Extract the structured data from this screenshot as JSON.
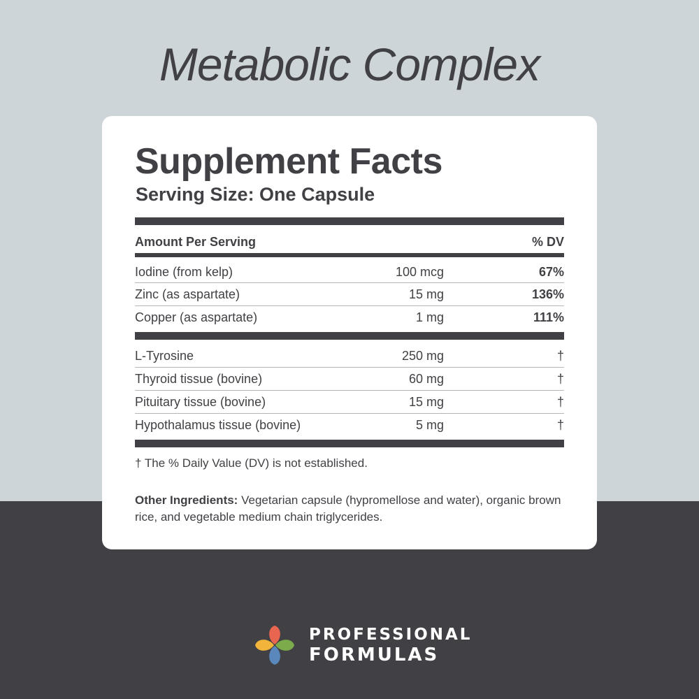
{
  "product_title": "Metabolic Complex",
  "facts": {
    "title": "Supplement Facts",
    "serving_size": "Serving Size: One Capsule",
    "header": {
      "amount_label": "Amount Per Serving",
      "dv_label": "% DV"
    },
    "section1": [
      {
        "name": "Iodine (from kelp)",
        "amount": "100 mcg",
        "dv": "67%"
      },
      {
        "name": "Zinc (as aspartate)",
        "amount": "15 mg",
        "dv": "136%"
      },
      {
        "name": "Copper (as aspartate)",
        "amount": "1 mg",
        "dv": "111%"
      }
    ],
    "section2": [
      {
        "name": "L-Tyrosine",
        "amount": "250 mg",
        "dv": "†"
      },
      {
        "name": "Thyroid tissue (bovine)",
        "amount": "60 mg",
        "dv": "†"
      },
      {
        "name": "Pituitary tissue (bovine)",
        "amount": "15 mg",
        "dv": "†"
      },
      {
        "name": "Hypothalamus tissue (bovine)",
        "amount": "5 mg",
        "dv": "†"
      }
    ],
    "footnote": "† The % Daily Value (DV) is not established.",
    "other_ingredients_label": "Other Ingredients:",
    "other_ingredients_text": "Vegetarian capsule (hypromellose and water), organic brown rice, and vegetable medium chain triglycerides."
  },
  "brand": {
    "line1": "PROFESSIONAL",
    "line2": "FORMULAS",
    "logo_icon": "four-petal-logo-icon",
    "logo_colors": [
      "#e8654f",
      "#7bab4a",
      "#5a88bd",
      "#f2b43a"
    ]
  },
  "colors": {
    "background_top": "#cdd5d8",
    "background_bottom": "#414045",
    "text_dark": "#414045",
    "card": "#ffffff"
  }
}
